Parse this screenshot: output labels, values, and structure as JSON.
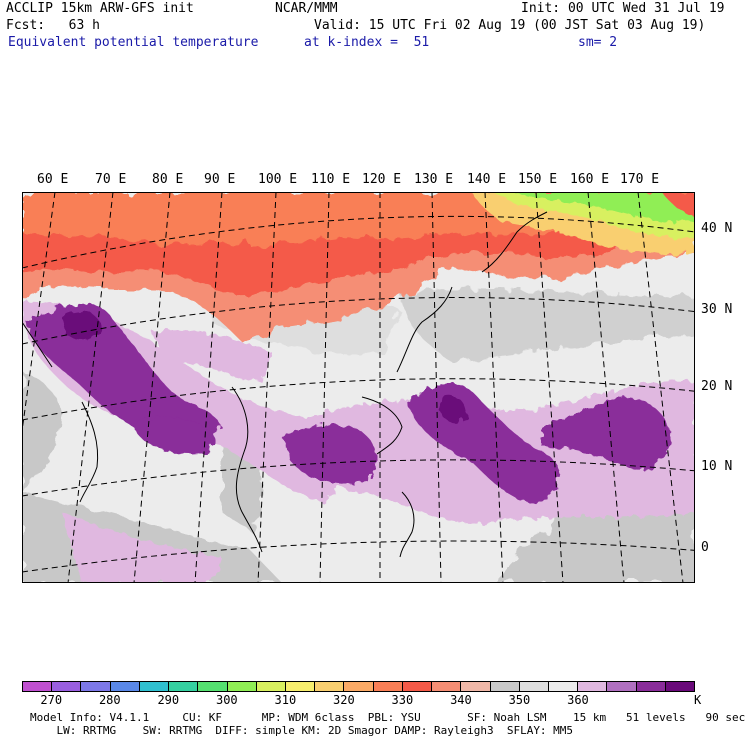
{
  "header": {
    "model_line": "ACCLIP 15km ARW-GFS init",
    "org": "NCAR/MMM",
    "init": "Init: 00 UTC Wed 31 Jul 19",
    "fcst": "Fcst:   63 h",
    "valid": "Valid: 15 UTC Fri 02 Aug 19 (00 JST Sat 03 Aug 19)",
    "field": "Equivalent potential temperature",
    "level": "at k-index =  51",
    "smooth": "sm= 2"
  },
  "axes": {
    "lon_labels": [
      "60 E",
      "70 E",
      "80 E",
      "90 E",
      "100 E",
      "110 E",
      "120 E",
      "130 E",
      "140 E",
      "150 E",
      "160 E",
      "170 E"
    ],
    "lat_labels": [
      "40 N",
      "30 N",
      "20 N",
      "10 N",
      "0"
    ]
  },
  "colorbar": {
    "colors": [
      "#c050d0",
      "#9a5fe0",
      "#7d78e8",
      "#5a88e8",
      "#30c0d0",
      "#35d0a0",
      "#55e070",
      "#90ee55",
      "#d8f060",
      "#f7ee6e",
      "#f9cf70",
      "#fbaa66",
      "#f97f56",
      "#f45a48",
      "#f58e74",
      "#f0b8a8",
      "#c8c8c8",
      "#dedede",
      "#ececec",
      "#e0b8e0",
      "#b070c0",
      "#8a2d9a",
      "#6a0a7a"
    ],
    "tick_labels": [
      "270",
      "280",
      "290",
      "300",
      "310",
      "320",
      "330",
      "340",
      "350",
      "360"
    ],
    "unit": "K"
  },
  "footer": {
    "line1": "Model Info: V4.1.1     CU: KF      MP: WDM 6class  PBL: YSU       SF: Noah LSM    15 km   51 levels   90 sec",
    "line2": "    LW: RRTMG    SW: RRTMG  DIFF: simple KM: 2D Smagor DAMP: Rayleigh3  SFLAY: MM5"
  }
}
